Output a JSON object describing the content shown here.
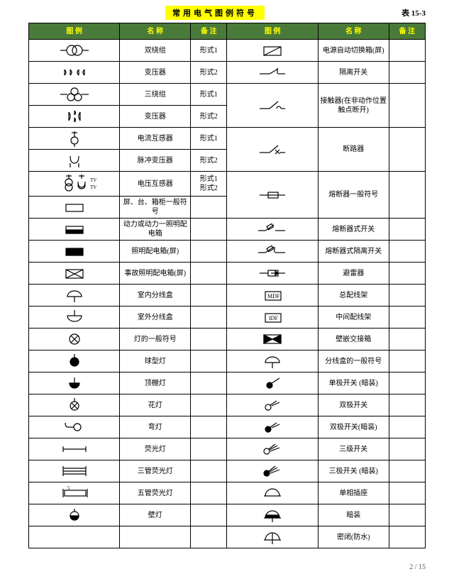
{
  "title": "常用电气图例符号",
  "table_number": "表 15-3",
  "pager": {
    "current": 2,
    "total": 15
  },
  "headers": {
    "symbol": "图 例",
    "name": "名 称",
    "note": "备 注"
  },
  "colors": {
    "header_bg": "#4a7a3a",
    "header_fg": "#ffff00",
    "title_bg": "#ffff00",
    "border": "#000000",
    "stroke": "#000000",
    "fill_black": "#000000",
    "fill_white": "#ffffff"
  },
  "left_rows": [
    {
      "name": "双绕组",
      "note": "形式1",
      "symbol": "dual-coil-1",
      "group": 0
    },
    {
      "name": "变压器",
      "note": "形式2",
      "symbol": "dual-coil-2",
      "group": 0
    },
    {
      "name": "三绕组",
      "note": "形式1",
      "symbol": "tri-coil-1",
      "group": 1
    },
    {
      "name": "变压器",
      "note": "形式2",
      "symbol": "tri-coil-2",
      "group": 1
    },
    {
      "name": "电流互感器",
      "note": "形式1",
      "symbol": "ct-1",
      "group": 2
    },
    {
      "name": "脉冲变压器",
      "note": "形式2",
      "symbol": "ct-2",
      "group": 2
    },
    {
      "name": "电压互感器",
      "note": "形式1\n形式2",
      "symbol": "vt",
      "group": 3,
      "labels": [
        "TV",
        "TV"
      ]
    },
    {
      "name": "屏、台、箱柜一般符号",
      "note": "",
      "symbol": "box-empty"
    },
    {
      "name": "动力或动力一照明配电箱",
      "note": "",
      "symbol": "box-half"
    },
    {
      "name": "照明配电箱(屏)",
      "note": "",
      "symbol": "box-filled"
    },
    {
      "name": "事故照明配电箱(屏)",
      "note": "",
      "symbol": "box-cross"
    },
    {
      "name": "室内分线盒",
      "note": "",
      "symbol": "mushroom-up"
    },
    {
      "name": "室外分线盒",
      "note": "",
      "symbol": "mushroom-dn"
    },
    {
      "name": "灯的一般符号",
      "note": "",
      "symbol": "lamp-x"
    },
    {
      "name": "球型灯",
      "note": "",
      "symbol": "ball-lamp"
    },
    {
      "name": "顶棚灯",
      "note": "",
      "symbol": "ceiling-lamp"
    },
    {
      "name": "花灯",
      "note": "",
      "symbol": "flower-lamp"
    },
    {
      "name": "弯灯",
      "note": "",
      "symbol": "bend-lamp"
    },
    {
      "name": "荧光灯",
      "note": "",
      "symbol": "fluor-1"
    },
    {
      "name": "三管荧光灯",
      "note": "",
      "symbol": "fluor-3"
    },
    {
      "name": "五管荧光灯",
      "note": "",
      "symbol": "fluor-5",
      "labels": [
        "5"
      ]
    },
    {
      "name": "壁灯",
      "note": "",
      "symbol": "wall-lamp"
    }
  ],
  "right_rows": [
    {
      "name": "电源自动切换箱(屏)",
      "note": "",
      "symbol": "auto-switch-box"
    },
    {
      "name": "隔离开关",
      "note": "",
      "symbol": "isolator"
    },
    {
      "name": "接触器(在非动作位置触点断开)",
      "note": "",
      "symbol": "contactor",
      "tall": true
    },
    {
      "name": "断路器",
      "note": "",
      "symbol": "breaker",
      "tall": true
    },
    {
      "name": "熔断器一般符号",
      "note": "",
      "symbol": "fuse",
      "tall": true
    },
    {
      "name": "熔断器式开关",
      "note": "",
      "symbol": "fuse-switch"
    },
    {
      "name": "熔断器式隔离开关",
      "note": "",
      "symbol": "fuse-isolator"
    },
    {
      "name": "避雷器",
      "note": "",
      "symbol": "arrester"
    },
    {
      "name": "总配线架",
      "note": "",
      "symbol": "mdf",
      "labels": [
        "MDF"
      ]
    },
    {
      "name": "中间配线架",
      "note": "",
      "symbol": "idf",
      "labels": [
        "IDF"
      ]
    },
    {
      "name": "壁嵌交接箱",
      "note": "",
      "symbol": "bowtie-box"
    },
    {
      "name": "分线盒的一般符号",
      "note": "",
      "symbol": "jbox"
    },
    {
      "name": "单极开关 (暗装)",
      "note": "",
      "symbol": "sw-1p"
    },
    {
      "name": "双极开关",
      "note": "",
      "symbol": "sw-2p-open"
    },
    {
      "name": "双极开关(暗装)",
      "note": "",
      "symbol": "sw-2p"
    },
    {
      "name": "三级开关",
      "note": "",
      "symbol": "sw-3p-open"
    },
    {
      "name": "三极开关 (暗装)",
      "note": "",
      "symbol": "sw-3p"
    },
    {
      "name": "单相插座",
      "note": "",
      "symbol": "socket-1"
    },
    {
      "name": "暗装",
      "note": "",
      "symbol": "socket-flush"
    },
    {
      "name": "密闭(防水)",
      "note": "",
      "symbol": "socket-sealed"
    }
  ]
}
